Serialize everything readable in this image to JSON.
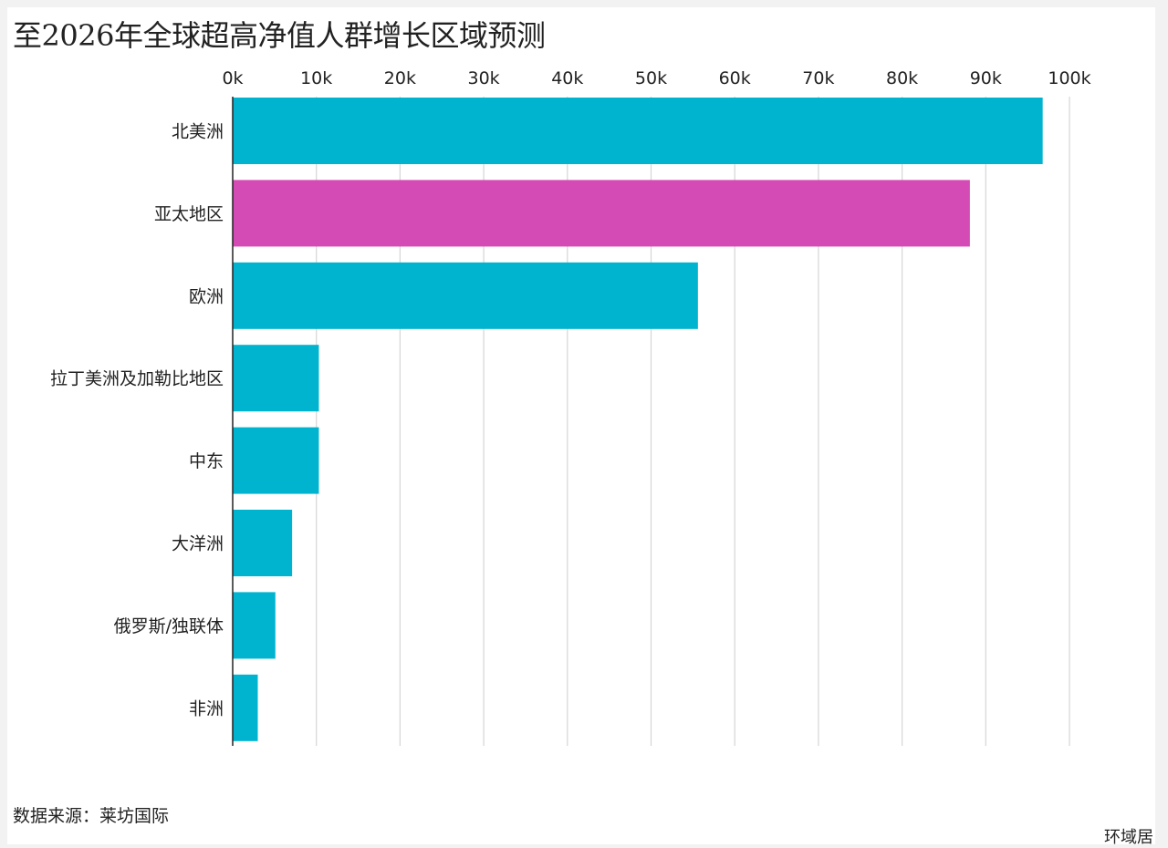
{
  "chart_data": {
    "type": "bar",
    "orientation": "horizontal",
    "title": "至2026年全球超高净值人群增长区域预测",
    "categories": [
      "北美洲",
      "亚太地区",
      "欧洲",
      "拉丁美洲及加勒比地区",
      "中东",
      "大洋洲",
      "俄罗斯/独联体",
      "非洲"
    ],
    "values": [
      96800,
      88100,
      55600,
      10300,
      10300,
      7100,
      5100,
      3000
    ],
    "bar_colors": [
      "#00b4d0",
      "#d44bb5",
      "#00b4d0",
      "#00b4d0",
      "#00b4d0",
      "#00b4d0",
      "#00b4d0",
      "#00b4d0"
    ],
    "x_ticks": [
      0,
      10000,
      20000,
      30000,
      40000,
      50000,
      60000,
      70000,
      80000,
      90000,
      100000
    ],
    "x_tick_labels": [
      "0k",
      "10k",
      "20k",
      "30k",
      "40k",
      "50k",
      "60k",
      "70k",
      "80k",
      "90k",
      "100k"
    ],
    "xlim": [
      0,
      100000
    ],
    "xlabel": "",
    "ylabel": "",
    "grid": true,
    "x_axis_position": "top",
    "legend": "none"
  },
  "source_note": "数据来源：莱坊国际",
  "watermark": "环域居",
  "colors": {
    "gridline": "#d6d6d6",
    "axis": "#222222",
    "background": "#ffffff",
    "page_background": "#f2f2f2"
  }
}
